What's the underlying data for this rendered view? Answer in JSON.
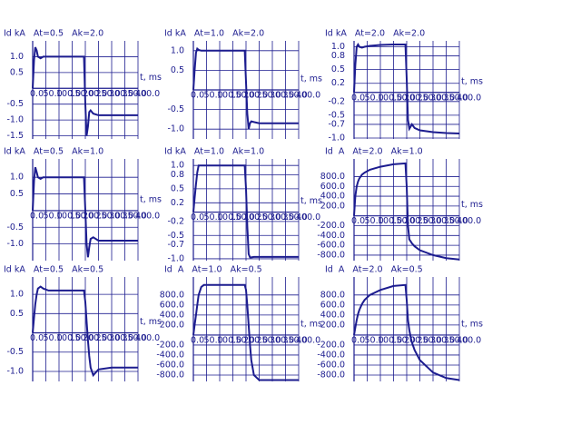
{
  "chart_data": [
    {
      "type": "line",
      "title": "Id kA   At=0.5   Ak=2.0",
      "x_label": "t, ms",
      "color": "#1c1c8f",
      "x": [
        0,
        5,
        10,
        15,
        20,
        30,
        40,
        60,
        100,
        150,
        195,
        200,
        205,
        210,
        215,
        220,
        230,
        250,
        300,
        350,
        400
      ],
      "values": [
        0,
        0.9,
        1.3,
        1.2,
        1.0,
        0.95,
        1.0,
        1.0,
        1.0,
        1.0,
        1.0,
        -0.5,
        -1.5,
        -1.2,
        -0.75,
        -0.7,
        -0.8,
        -0.85,
        -0.85,
        -0.85,
        -0.85
      ],
      "xlim": [
        0,
        400
      ],
      "xticks": [
        {
          "value": 0,
          "label": "0.0"
        },
        {
          "value": 50,
          "label": "50.0"
        },
        {
          "value": 100,
          "label": "100.0"
        },
        {
          "value": 150,
          "label": "150.0"
        },
        {
          "value": 200,
          "label": "200.0"
        },
        {
          "value": 250,
          "label": "250.0"
        },
        {
          "value": 300,
          "label": "300.0"
        },
        {
          "value": 350,
          "label": "350.0"
        },
        {
          "value": 400,
          "label": "400.0"
        }
      ],
      "ylim": [
        -1.6,
        1.5
      ],
      "yticks": [
        {
          "value": 1,
          "label": "1.0"
        },
        0.5,
        -0.5,
        {
          "value": -1,
          "label": "-1.0"
        },
        -1.5
      ]
    },
    {
      "type": "line",
      "title": "Id kA   At=1.0   Ak=2.0",
      "x_label": "t, ms",
      "color": "#1c1c8f",
      "x": [
        0,
        5,
        10,
        15,
        20,
        30,
        40,
        60,
        100,
        150,
        195,
        200,
        205,
        210,
        215,
        220,
        230,
        250,
        300,
        350,
        400
      ],
      "values": [
        0,
        0.5,
        0.95,
        1.05,
        1.02,
        1.0,
        1.0,
        1.0,
        1.0,
        1.0,
        1.0,
        0.2,
        -0.6,
        -1.0,
        -0.85,
        -0.8,
        -0.82,
        -0.85,
        -0.85,
        -0.85,
        -0.85
      ],
      "xlim": [
        0,
        400
      ],
      "xticks": [
        {
          "value": 0,
          "label": "0.0"
        },
        {
          "value": 50,
          "label": "50.0"
        },
        {
          "value": 100,
          "label": "100.0"
        },
        {
          "value": 150,
          "label": "150.0"
        },
        {
          "value": 200,
          "label": "200.0"
        },
        {
          "value": 250,
          "label": "250.0"
        },
        {
          "value": 300,
          "label": "300.0"
        },
        {
          "value": 350,
          "label": "350.0"
        },
        {
          "value": 400,
          "label": "400.0"
        }
      ],
      "ylim": [
        -1.25,
        1.25
      ],
      "yticks": [
        {
          "value": 1,
          "label": "1.0"
        },
        0.5,
        -0.5,
        {
          "value": -1,
          "label": "-1.0"
        }
      ]
    },
    {
      "type": "line",
      "title": "Id kA   At=2.0   Ak=2.0",
      "x_label": "t, ms",
      "color": "#1c1c8f",
      "x": [
        0,
        5,
        10,
        15,
        20,
        30,
        40,
        60,
        100,
        150,
        195,
        200,
        205,
        210,
        215,
        220,
        230,
        250,
        300,
        350,
        400
      ],
      "values": [
        0,
        0.6,
        1.0,
        1.05,
        1.0,
        0.98,
        1.0,
        1.02,
        1.04,
        1.05,
        1.05,
        0.3,
        -0.6,
        -0.8,
        -0.75,
        -0.7,
        -0.78,
        -0.83,
        -0.87,
        -0.89,
        -0.9
      ],
      "xlim": [
        0,
        400
      ],
      "xticks": [
        {
          "value": 0,
          "label": "0.0"
        },
        {
          "value": 50,
          "label": "50.0"
        },
        {
          "value": 100,
          "label": "100.0"
        },
        {
          "value": 150,
          "label": "150.0"
        },
        {
          "value": 200,
          "label": "200.0"
        },
        {
          "value": 250,
          "label": "250.0"
        },
        {
          "value": 300,
          "label": "300.0"
        },
        {
          "value": 350,
          "label": "350.0"
        },
        {
          "value": 400,
          "label": "400.0"
        }
      ],
      "ylim": [
        -1.02,
        1.13
      ],
      "yticks": [
        {
          "value": 1,
          "label": "1.0"
        },
        0.8,
        0.5,
        0.2,
        -0.2,
        -0.5,
        -0.7,
        {
          "value": -1,
          "label": "-1.0"
        }
      ]
    },
    {
      "type": "line",
      "title": "Id kA   At=0.5   Ak=1.0",
      "x_label": "t, ms",
      "color": "#1c1c8f",
      "x": [
        0,
        5,
        10,
        15,
        20,
        30,
        40,
        60,
        100,
        150,
        195,
        200,
        205,
        210,
        215,
        220,
        230,
        250,
        300,
        350,
        400
      ],
      "values": [
        0,
        0.9,
        1.3,
        1.15,
        1.0,
        0.95,
        1.0,
        1.0,
        1.0,
        1.0,
        1.0,
        0.0,
        -1.0,
        -1.4,
        -1.1,
        -0.85,
        -0.8,
        -0.9,
        -0.9,
        -0.9,
        -0.9
      ],
      "xlim": [
        0,
        400
      ],
      "xticks": [
        {
          "value": 0,
          "label": "0.0"
        },
        {
          "value": 50,
          "label": "50.0"
        },
        {
          "value": 100,
          "label": "100.0"
        },
        {
          "value": 150,
          "label": "150.0"
        },
        {
          "value": 200,
          "label": "200.0"
        },
        {
          "value": 250,
          "label": "250.0"
        },
        {
          "value": 300,
          "label": "300.0"
        },
        {
          "value": 350,
          "label": "350.0"
        },
        {
          "value": 400,
          "label": "400.0"
        }
      ],
      "ylim": [
        -1.5,
        1.55
      ],
      "yticks": [
        {
          "value": 1,
          "label": "1.0"
        },
        0.5,
        -0.5,
        {
          "value": -1,
          "label": "-1.0"
        }
      ]
    },
    {
      "type": "line",
      "title": "Id kA   At=1.0   Ak=1.0",
      "x_label": "t, ms",
      "color": "#1c1c8f",
      "x": [
        0,
        5,
        10,
        15,
        20,
        30,
        40,
        60,
        100,
        150,
        195,
        200,
        205,
        210,
        215,
        220,
        230,
        250,
        300,
        350,
        400
      ],
      "values": [
        0,
        0.3,
        0.6,
        0.85,
        1.0,
        1.0,
        1.0,
        1.0,
        1.0,
        1.0,
        1.0,
        0.5,
        -0.3,
        -0.9,
        -0.97,
        -0.97,
        -0.96,
        -0.96,
        -0.96,
        -0.96,
        -0.96
      ],
      "xlim": [
        0,
        400
      ],
      "xticks": [
        {
          "value": 0,
          "label": "0.0"
        },
        {
          "value": 50,
          "label": "50.0"
        },
        {
          "value": 100,
          "label": "100.0"
        },
        {
          "value": 150,
          "label": "150.0"
        },
        {
          "value": 200,
          "label": "200.0"
        },
        {
          "value": 250,
          "label": "250.0"
        },
        {
          "value": 300,
          "label": "300.0"
        },
        {
          "value": 350,
          "label": "350.0"
        },
        {
          "value": 400,
          "label": "400.0"
        }
      ],
      "ylim": [
        -1.04,
        1.14
      ],
      "yticks": [
        {
          "value": 1,
          "label": "1.0"
        },
        0.8,
        0.5,
        0.2,
        -0.2,
        -0.5,
        -0.7,
        {
          "value": -1,
          "label": "-1.0"
        }
      ]
    },
    {
      "type": "line",
      "title": "Id  A   At=2.0   Ak=1.0",
      "x_label": "t, ms",
      "color": "#1c1c8f",
      "x": [
        0,
        5,
        10,
        15,
        20,
        30,
        40,
        60,
        100,
        150,
        195,
        200,
        205,
        210,
        215,
        220,
        230,
        250,
        300,
        350,
        400
      ],
      "values": [
        0,
        400,
        600,
        700,
        760,
        840,
        880,
        940,
        1000,
        1050,
        1070,
        600,
        -200,
        -480,
        -520,
        -560,
        -620,
        -700,
        -800,
        -860,
        -890
      ],
      "xlim": [
        0,
        400
      ],
      "xticks": [
        {
          "value": 0,
          "label": "0.0"
        },
        {
          "value": 50,
          "label": "50.0"
        },
        {
          "value": 100,
          "label": "100.0"
        },
        {
          "value": 150,
          "label": "150.0"
        },
        {
          "value": 200,
          "label": "200.0"
        },
        {
          "value": 250,
          "label": "250.0"
        },
        {
          "value": 300,
          "label": "300.0"
        },
        {
          "value": 350,
          "label": "350.0"
        },
        {
          "value": 400,
          "label": "400.0"
        }
      ],
      "ylim": [
        -912,
        1160
      ],
      "yticks": [
        {
          "value": 800,
          "label": "800.0"
        },
        {
          "value": 600,
          "label": "600.0"
        },
        {
          "value": 400,
          "label": "400.0"
        },
        {
          "value": 200,
          "label": "200.0"
        },
        {
          "value": -200,
          "label": "-200.0"
        },
        {
          "value": -400,
          "label": "-400.0"
        },
        {
          "value": -600,
          "label": "-600.0"
        },
        {
          "value": -800,
          "label": "-800.0"
        }
      ]
    },
    {
      "type": "line",
      "title": "Id kA   At=0.5   Ak=0.5",
      "x_label": "t, ms",
      "color": "#1c1c8f",
      "x": [
        0,
        5,
        10,
        15,
        20,
        30,
        40,
        60,
        100,
        150,
        195,
        200,
        205,
        210,
        215,
        220,
        230,
        250,
        300,
        350,
        400
      ],
      "values": [
        0,
        0.4,
        0.75,
        1.0,
        1.15,
        1.2,
        1.15,
        1.1,
        1.1,
        1.1,
        1.1,
        0.8,
        0.3,
        -0.2,
        -0.6,
        -0.9,
        -1.1,
        -0.95,
        -0.9,
        -0.9,
        -0.9
      ],
      "xlim": [
        0,
        400
      ],
      "xticks": [
        {
          "value": 0,
          "label": "0.0"
        },
        {
          "value": 50,
          "label": "50.0"
        },
        {
          "value": 100,
          "label": "100.0"
        },
        {
          "value": 150,
          "label": "150.0"
        },
        {
          "value": 200,
          "label": "200.0"
        },
        {
          "value": 250,
          "label": "250.0"
        },
        {
          "value": 300,
          "label": "300.0"
        },
        {
          "value": 350,
          "label": "350.0"
        },
        {
          "value": 400,
          "label": "400.0"
        }
      ],
      "ylim": [
        -1.26,
        1.45
      ],
      "yticks": [
        {
          "value": 1,
          "label": "1.0"
        },
        0.5,
        -0.5,
        {
          "value": -1,
          "label": "-1.0"
        }
      ]
    },
    {
      "type": "line",
      "title": "Id  A   At=1.0   Ak=0.5",
      "x_label": "t, ms",
      "color": "#1c1c8f",
      "x": [
        0,
        5,
        10,
        15,
        20,
        30,
        40,
        60,
        100,
        150,
        195,
        200,
        205,
        210,
        215,
        220,
        230,
        250,
        300,
        350,
        400
      ],
      "values": [
        0,
        200,
        400,
        600,
        800,
        960,
        1000,
        1000,
        1000,
        1000,
        1000,
        900,
        600,
        200,
        -200,
        -500,
        -800,
        -900,
        -900,
        -900,
        -900
      ],
      "xlim": [
        0,
        400
      ],
      "xticks": [
        {
          "value": 0,
          "label": "0.0"
        },
        {
          "value": 50,
          "label": "50.0"
        },
        {
          "value": 100,
          "label": "100.0"
        },
        {
          "value": 150,
          "label": "150.0"
        },
        {
          "value": 200,
          "label": "200.0"
        },
        {
          "value": 250,
          "label": "250.0"
        },
        {
          "value": 300,
          "label": "300.0"
        },
        {
          "value": 350,
          "label": "350.0"
        },
        {
          "value": 400,
          "label": "400.0"
        }
      ],
      "ylim": [
        -927,
        1160
      ],
      "yticks": [
        {
          "value": 800,
          "label": "800.0"
        },
        {
          "value": 600,
          "label": "600.0"
        },
        {
          "value": 400,
          "label": "400.0"
        },
        {
          "value": 200,
          "label": "200.0"
        },
        {
          "value": -200,
          "label": "-200.0"
        },
        {
          "value": -400,
          "label": "-400.0"
        },
        {
          "value": -600,
          "label": "-600.0"
        },
        {
          "value": -800,
          "label": "-800.0"
        }
      ]
    },
    {
      "type": "line",
      "title": "Id  A   At=2.0   Ak=0.5",
      "x_label": "t, ms",
      "color": "#1c1c8f",
      "x": [
        0,
        5,
        10,
        15,
        20,
        30,
        40,
        60,
        100,
        150,
        195,
        200,
        205,
        210,
        215,
        220,
        230,
        250,
        300,
        350,
        400
      ],
      "values": [
        0,
        150,
        300,
        420,
        500,
        620,
        700,
        800,
        900,
        980,
        1000,
        700,
        300,
        100,
        -50,
        -150,
        -300,
        -500,
        -750,
        -860,
        -900
      ],
      "xlim": [
        0,
        400
      ],
      "xticks": [
        {
          "value": 0,
          "label": "0.0"
        },
        {
          "value": 50,
          "label": "50.0"
        },
        {
          "value": 100,
          "label": "100.0"
        },
        {
          "value": 150,
          "label": "150.0"
        },
        {
          "value": 200,
          "label": "200.0"
        },
        {
          "value": 250,
          "label": "250.0"
        },
        {
          "value": 300,
          "label": "300.0"
        },
        {
          "value": 350,
          "label": "350.0"
        },
        {
          "value": 400,
          "label": "400.0"
        }
      ],
      "ylim": [
        -927,
        1160
      ],
      "yticks": [
        {
          "value": 800,
          "label": "800.0"
        },
        {
          "value": 600,
          "label": "600.0"
        },
        {
          "value": 400,
          "label": "400.0"
        },
        {
          "value": 200,
          "label": "200.0"
        },
        {
          "value": -200,
          "label": "-200.0"
        },
        {
          "value": -400,
          "label": "-400.0"
        },
        {
          "value": -600,
          "label": "-600.0"
        },
        {
          "value": -800,
          "label": "-800.0"
        }
      ]
    }
  ]
}
